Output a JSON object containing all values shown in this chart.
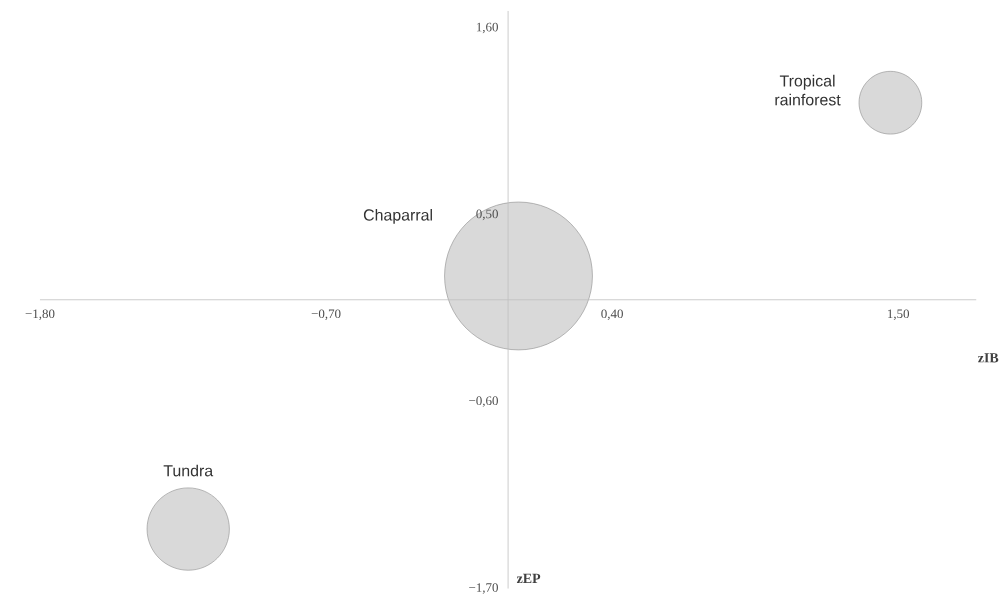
{
  "chart_data": {
    "type": "bubble",
    "xlabel": "zIB",
    "ylabel": "zEP",
    "xlim": [
      -1.8,
      1.8
    ],
    "ylim": [
      -1.7,
      1.7
    ],
    "xticks": [
      {
        "value": -1.8,
        "label": "−1,80"
      },
      {
        "value": -0.7,
        "label": "−0,70"
      },
      {
        "value": 0.4,
        "label": "0,40"
      },
      {
        "value": 1.5,
        "label": "1,50"
      }
    ],
    "yticks": [
      {
        "value": -1.7,
        "label": "−1,70"
      },
      {
        "value": -0.6,
        "label": "−0,60"
      },
      {
        "value": 0.5,
        "label": "0,50"
      },
      {
        "value": 1.6,
        "label": "1,60"
      }
    ],
    "series": [
      {
        "name": "Tropical rainforest",
        "color": "#d9d9d9",
        "x": [
          1.47
        ],
        "values": [
          1.16
        ],
        "sizes": [
          0.18
        ]
      },
      {
        "name": "Chaparral",
        "color": "#d9d9d9",
        "x": [
          0.04
        ],
        "values": [
          0.14
        ],
        "sizes": [
          1
        ]
      },
      {
        "name": "Tundra",
        "color": "#d9d9d9",
        "x": [
          -1.23
        ],
        "values": [
          -1.35
        ],
        "sizes": [
          0.31
        ]
      }
    ]
  }
}
